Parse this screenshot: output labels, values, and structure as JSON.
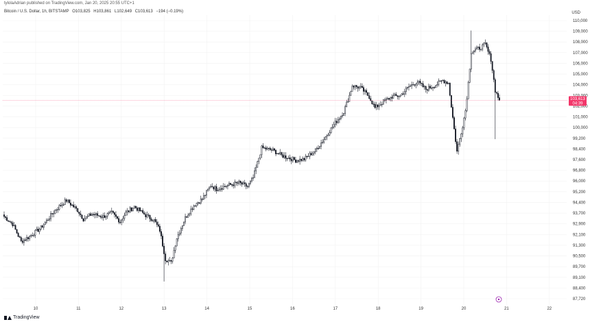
{
  "header": {
    "published": "tylolaAdrian published on TradingView.com, Jan 20, 2025 20:55 UTC+1"
  },
  "symbol": {
    "name": "Bitcoin / U.S. Dollar, 1h, BITSTAMP",
    "open": "O103,825",
    "high": "H103,861",
    "low": "L102,649",
    "close": "C103,613",
    "change": "−194 (−0.19%)"
  },
  "currency": "USD",
  "footer": {
    "brand": "TradingView"
  },
  "last_price_tag": {
    "price": "103,613",
    "countdown": "04:39"
  },
  "colors": {
    "up_body": "#ffffff",
    "down_body": "#131722",
    "wick": "#131722",
    "price_tag": "#f23669",
    "price_line": "#f23669",
    "marker": "#9c27b0"
  },
  "chart_data": {
    "type": "candlestick",
    "interval": "1h",
    "y_ticks": [
      "110,000",
      "109,000",
      "108,000",
      "107,000",
      "106,000",
      "105,000",
      "104,000",
      "103,000",
      "102,000",
      "101,000",
      "100,000",
      "99,200",
      "98,400",
      "97,600",
      "96,800",
      "96,000",
      "95,200",
      "94,400",
      "93,700",
      "92,900",
      "92,100",
      "91,300",
      "90,500",
      "89,700",
      "89,100",
      "88,400",
      "87,720"
    ],
    "x_ticks": [
      "10",
      "11",
      "12",
      "13",
      "14",
      "15",
      "16",
      "17",
      "18",
      "19",
      "20",
      "21",
      "22"
    ],
    "ylim": [
      87400,
      111000
    ],
    "anchors": [
      [
        0,
        94300
      ],
      [
        6,
        93700
      ],
      [
        12,
        92300
      ],
      [
        18,
        92700
      ],
      [
        26,
        93400
      ],
      [
        36,
        94800
      ],
      [
        44,
        95600
      ],
      [
        52,
        94800
      ],
      [
        56,
        94100
      ],
      [
        62,
        94500
      ],
      [
        70,
        94300
      ],
      [
        76,
        94600
      ],
      [
        82,
        93900
      ],
      [
        86,
        94600
      ],
      [
        92,
        95100
      ],
      [
        100,
        94400
      ],
      [
        106,
        94000
      ],
      [
        110,
        93200
      ],
      [
        114,
        90900
      ],
      [
        118,
        90600
      ],
      [
        122,
        92600
      ],
      [
        128,
        94200
      ],
      [
        134,
        95200
      ],
      [
        140,
        95700
      ],
      [
        146,
        96800
      ],
      [
        150,
        96500
      ],
      [
        158,
        96800
      ],
      [
        166,
        97000
      ],
      [
        172,
        96700
      ],
      [
        176,
        97400
      ],
      [
        182,
        99800
      ],
      [
        190,
        99600
      ],
      [
        196,
        99200
      ],
      [
        206,
        98800
      ],
      [
        212,
        98900
      ],
      [
        220,
        99600
      ],
      [
        226,
        100500
      ],
      [
        232,
        101500
      ],
      [
        236,
        102100
      ],
      [
        240,
        102700
      ],
      [
        244,
        104000
      ],
      [
        246,
        104800
      ],
      [
        252,
        104600
      ],
      [
        258,
        103900
      ],
      [
        262,
        103000
      ],
      [
        268,
        103500
      ],
      [
        274,
        103900
      ],
      [
        280,
        104000
      ],
      [
        286,
        104700
      ],
      [
        292,
        105100
      ],
      [
        298,
        104500
      ],
      [
        304,
        104800
      ],
      [
        310,
        105200
      ],
      [
        314,
        105000
      ],
      [
        318,
        101300
      ],
      [
        320,
        99500
      ],
      [
        324,
        101600
      ],
      [
        326,
        102800
      ],
      [
        328,
        105000
      ],
      [
        330,
        107500
      ],
      [
        336,
        107800
      ],
      [
        340,
        108100
      ],
      [
        344,
        106900
      ],
      [
        347,
        104400
      ],
      [
        350,
        103600
      ]
    ],
    "min_price": 89100,
    "max_price": 109200,
    "last_price": 103613
  }
}
